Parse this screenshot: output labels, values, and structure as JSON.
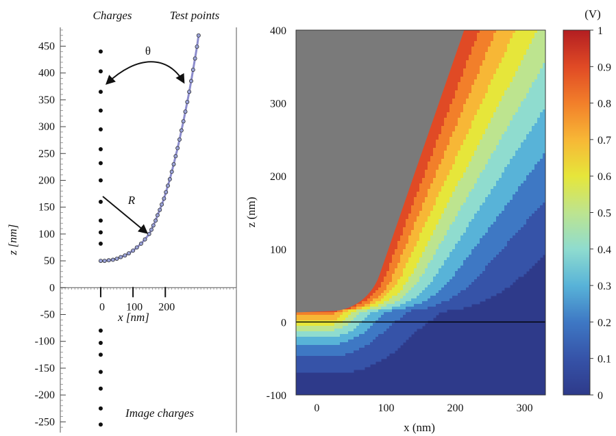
{
  "chart_data": [
    {
      "type": "scatter",
      "header_left": "Charges",
      "header_right": "Test points",
      "xlabel": "x [nm]",
      "ylabel": "z [nm]",
      "yticks": [
        450,
        400,
        350,
        300,
        250,
        200,
        150,
        100,
        50,
        0,
        -50,
        -100,
        -150,
        -200,
        -250
      ],
      "xticks": [
        0,
        100,
        200
      ],
      "ylim": [
        -270,
        485
      ],
      "xlim": [
        -125,
        420
      ],
      "angle_label": "θ",
      "radius_label": "R",
      "image_label": "Image charges",
      "series": [
        {
          "points": [
            [
              0,
              440
            ],
            [
              0,
              403
            ],
            [
              0,
              365
            ],
            [
              0,
              330
            ],
            [
              0,
              295
            ],
            [
              0,
              258
            ],
            [
              0,
              232
            ],
            [
              0,
              200
            ],
            [
              0,
              160
            ],
            [
              0,
              125
            ],
            [
              0,
              103
            ],
            [
              0,
              82
            ]
          ]
        },
        {
          "points": [
            [
              0,
              -80
            ],
            [
              0,
              -103
            ],
            [
              0,
              -125
            ],
            [
              0,
              -157
            ],
            [
              0,
              -188
            ],
            [
              0,
              -225
            ],
            [
              0,
              -255
            ]
          ]
        },
        {
          "points": [
            [
              0,
              50
            ],
            [
              12,
              50
            ],
            [
              25,
              51
            ],
            [
              38,
              52
            ],
            [
              50,
              54
            ],
            [
              62,
              57
            ],
            [
              75,
              60
            ],
            [
              87,
              64
            ],
            [
              100,
              69
            ],
            [
              112,
              75
            ],
            [
              125,
              82
            ],
            [
              137,
              90
            ],
            [
              150,
              100
            ],
            [
              157,
              108
            ],
            [
              163,
              116
            ],
            [
              170,
              125
            ],
            [
              176,
              135
            ],
            [
              183,
              145
            ],
            [
              189,
              155
            ],
            [
              196,
              166
            ],
            [
              202,
              178
            ],
            [
              208,
              190
            ],
            [
              214,
              202
            ],
            [
              220,
              216
            ],
            [
              226,
              230
            ],
            [
              232,
              245
            ],
            [
              238,
              260
            ],
            [
              244,
              276
            ],
            [
              250,
              293
            ],
            [
              256,
              310
            ],
            [
              262,
              328
            ],
            [
              268,
              346
            ],
            [
              274,
              365
            ],
            [
              280,
              385
            ],
            [
              286,
              406
            ],
            [
              292,
              427
            ],
            [
              298,
              449
            ],
            [
              303,
              470
            ]
          ]
        }
      ]
    },
    {
      "type": "heatmap",
      "xlabel": "x (nm)",
      "ylabel": "z (nm)",
      "xticks": [
        0,
        100,
        200,
        300
      ],
      "yticks": [
        400,
        300,
        200,
        100,
        0,
        -100
      ],
      "xlim": [
        -30,
        330
      ],
      "ylim": [
        -100,
        400
      ],
      "colorbar_unit": "(V)",
      "colorbar_ticks": [
        1,
        0.9,
        0.8,
        0.7,
        0.6,
        0.5,
        0.4,
        0.3,
        0.2,
        0.1,
        0
      ],
      "colorbar_range": [
        0,
        1
      ],
      "levels": [
        0.1,
        0.2,
        0.3,
        0.4,
        0.5,
        0.6,
        0.7,
        0.8,
        0.9
      ],
      "tip_color": "#7a7a7a",
      "colors": [
        "#2e3a8a",
        "#3653a8",
        "#3e78c4",
        "#58b3d8",
        "#8fdccf",
        "#bde48f",
        "#e6e63a",
        "#f7b736",
        "#f27f2a",
        "#e04a25",
        "#b31e22"
      ]
    }
  ]
}
